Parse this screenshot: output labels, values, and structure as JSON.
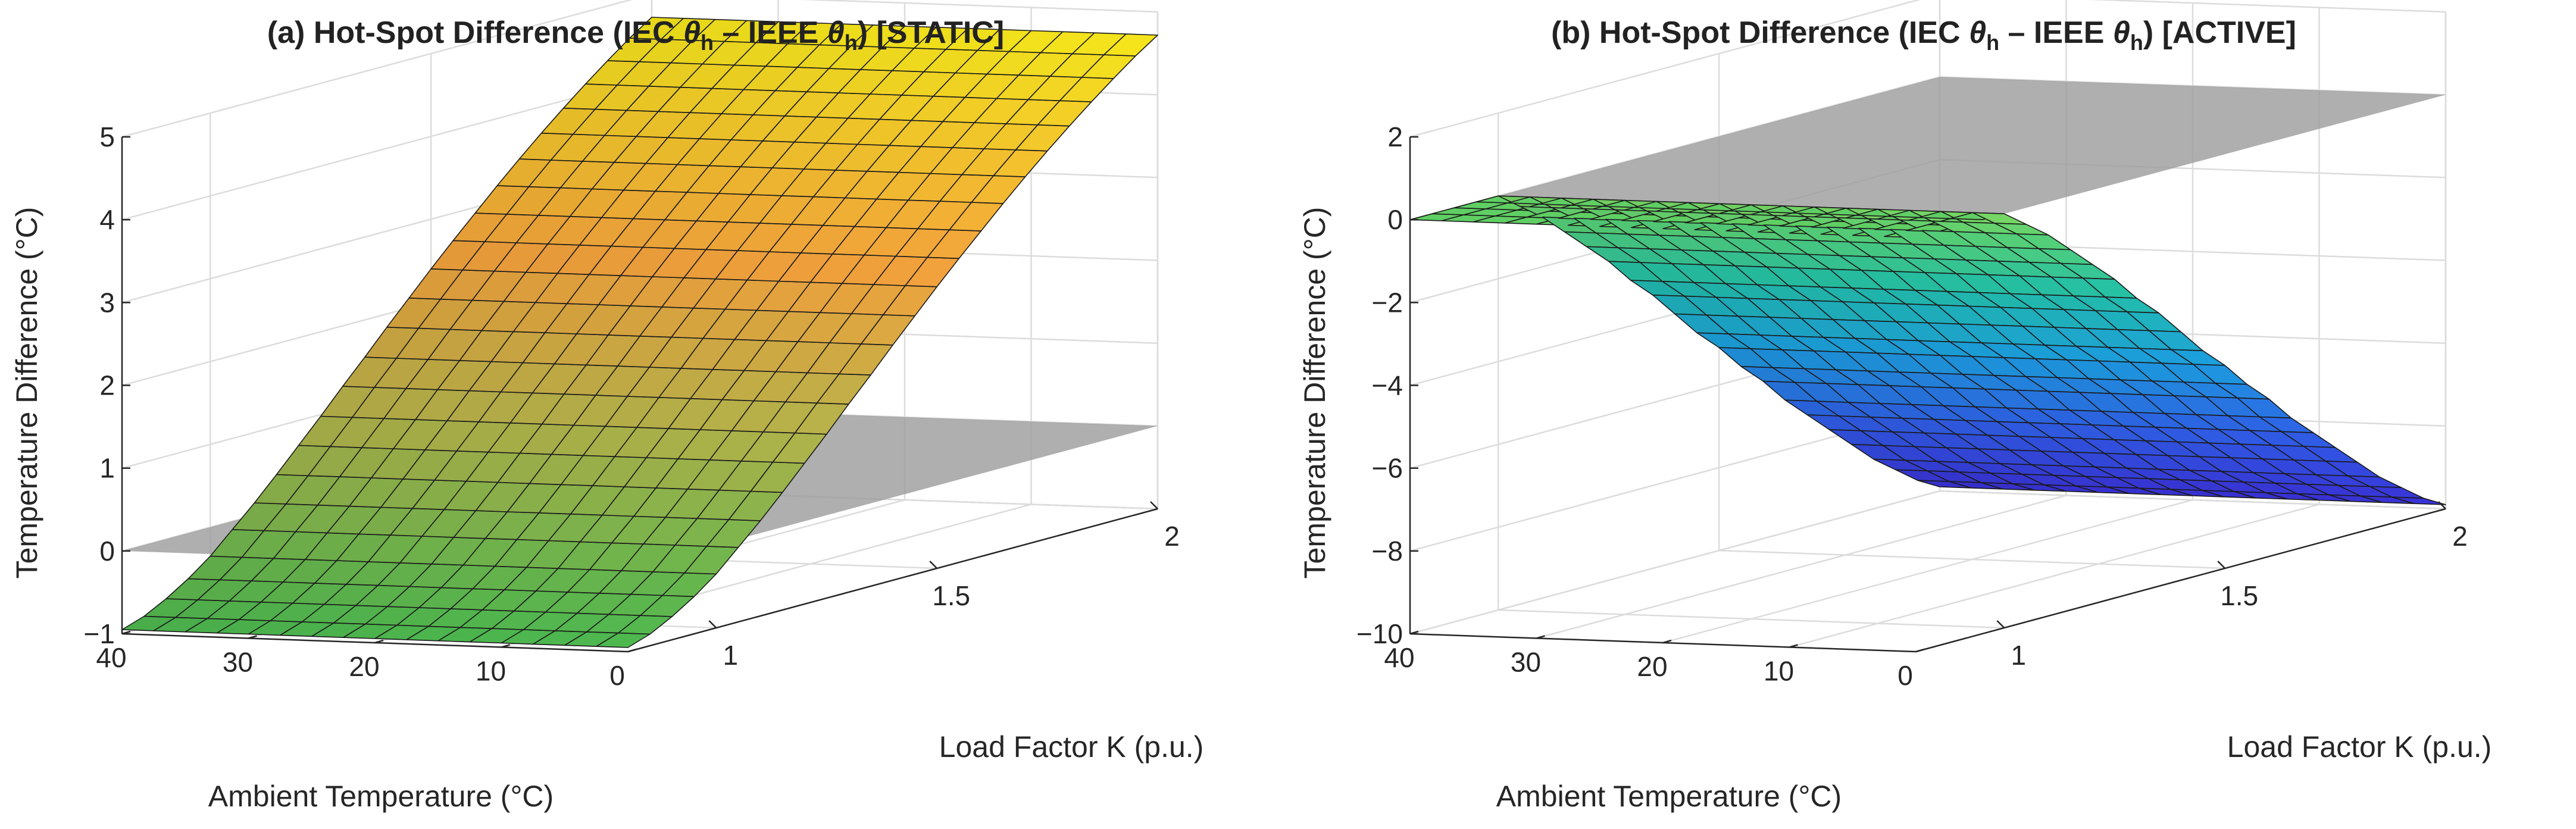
{
  "chart_data": [
    {
      "type": "surface",
      "title_prefix": "(a)  Hot-Spot  Difference  (IEC",
      "title_mid": "–  IEEE",
      "title_suffix": ")  [STATIC]",
      "theta_symbol": "θ",
      "theta_sub": "h",
      "xlabel": "Load Factor K (p.u.)",
      "ylabel": "Ambient  Temperature  (°C)",
      "zlabel": "Temperature  Difference  (°C)",
      "xlim": [
        0.8,
        2.0
      ],
      "ylim": [
        0,
        40
      ],
      "zlim": [
        -1,
        5
      ],
      "x_ticks": [
        1,
        1.5,
        2
      ],
      "x_tick_labels": [
        "1",
        "1.5",
        "2"
      ],
      "y_ticks": [
        0,
        10,
        20,
        30,
        40
      ],
      "y_tick_labels": [
        "0",
        "10",
        "20",
        "30",
        "40"
      ],
      "z_ticks": [
        -1,
        0,
        1,
        2,
        3,
        4,
        5
      ],
      "z_tick_labels": [
        "−1",
        "0",
        "1",
        "2",
        "3",
        "4",
        "5"
      ],
      "grid": true,
      "zero_plane": 0,
      "colormap": "summer-to-yellow",
      "colors": {
        "low": "#3fae4a",
        "mid": "#f2a23c",
        "high": "#f5e61c",
        "plane": "#9b9b9b"
      },
      "surface": {
        "k": [
          0.8,
          0.85,
          0.9,
          0.95,
          1.0,
          1.05,
          1.1,
          1.15,
          1.2,
          1.25,
          1.3,
          1.35,
          1.4,
          1.45,
          1.5,
          1.55,
          1.6,
          1.65,
          1.7,
          1.75,
          1.8,
          1.85,
          1.9,
          1.95,
          2.0
        ],
        "ambient": [
          0,
          2.5,
          5,
          7.5,
          10,
          12.5,
          15,
          17.5,
          20,
          22.5,
          25,
          27.5,
          30,
          32.5,
          35,
          37.5,
          40
        ],
        "diff": [
          -0.95,
          -0.86,
          -0.72,
          -0.55,
          -0.35,
          -0.1,
          0.15,
          0.42,
          0.7,
          0.98,
          1.27,
          1.55,
          1.84,
          2.12,
          2.4,
          2.67,
          2.93,
          3.19,
          3.44,
          3.68,
          3.91,
          4.13,
          4.34,
          4.54,
          4.72
        ]
      }
    },
    {
      "type": "surface",
      "title_prefix": "(b)  Hot-Spot  Difference  (IEC",
      "title_mid": "–  IEEE",
      "title_suffix": ")  [ACTIVE]",
      "theta_symbol": "θ",
      "theta_sub": "h",
      "xlabel": "Load Factor K (p.u.)",
      "ylabel": "Ambient  Temperature  (°C)",
      "zlabel": "Temperature  Difference  (°C)",
      "xlim": [
        0.8,
        2.0
      ],
      "ylim": [
        0,
        40
      ],
      "zlim": [
        -10,
        2
      ],
      "x_ticks": [
        1,
        1.5,
        2
      ],
      "x_tick_labels": [
        "1",
        "1.5",
        "2"
      ],
      "y_ticks": [
        0,
        10,
        20,
        30,
        40
      ],
      "y_tick_labels": [
        "0",
        "10",
        "20",
        "30",
        "40"
      ],
      "z_ticks": [
        -10,
        -8,
        -6,
        -4,
        -2,
        0,
        2
      ],
      "z_tick_labels": [
        "−10",
        "−8",
        "−6",
        "−4",
        "−2",
        "0",
        "2"
      ],
      "grid": true,
      "zero_plane": 0,
      "colormap": "parula",
      "colors": {
        "plane": "#9b9b9b",
        "flat": "#5fcf63"
      },
      "surface": {
        "k": [
          0.8,
          0.85,
          0.9,
          0.95,
          1.0,
          1.05,
          1.1,
          1.15,
          1.2,
          1.25,
          1.3,
          1.35,
          1.4,
          1.45,
          1.5,
          1.55,
          1.6,
          1.65,
          1.7,
          1.75,
          1.8,
          1.85,
          1.9,
          1.95,
          2.0
        ],
        "ambient": [
          0,
          2.5,
          5,
          7.5,
          10,
          12.5,
          15,
          17.5,
          20,
          22.5,
          25,
          27.5,
          30,
          32.5,
          35,
          37.5,
          40
        ],
        "diff": [
          0,
          0,
          0,
          0,
          0,
          -0.4,
          -0.8,
          -1.3,
          -1.8,
          -2.3,
          -2.9,
          -3.4,
          -4.0,
          -4.6,
          -5.1,
          -5.7,
          -6.2,
          -6.8,
          -7.3,
          -7.8,
          -8.3,
          -8.8,
          -9.2,
          -9.6,
          -9.9
        ]
      }
    }
  ]
}
